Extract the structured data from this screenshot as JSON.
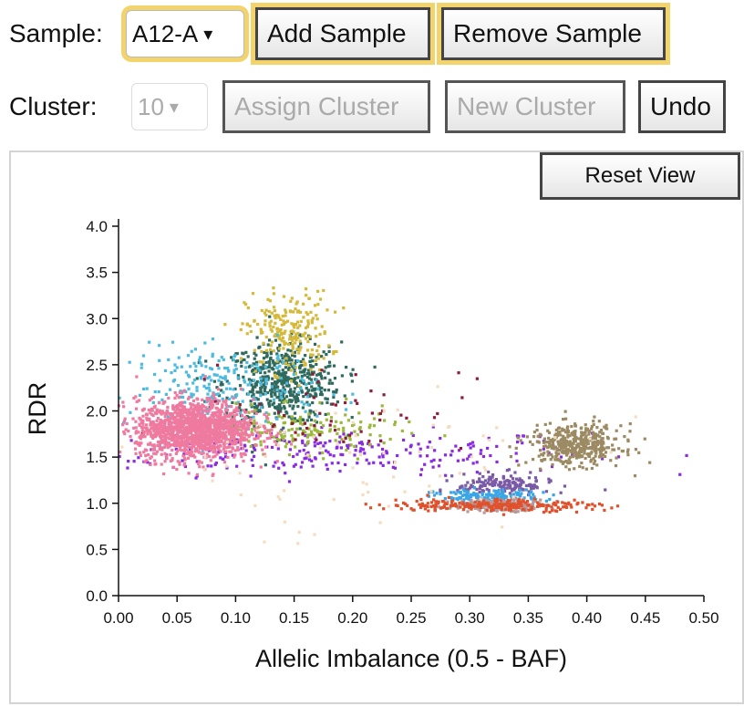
{
  "controls": {
    "sample_label": "Sample:",
    "sample_value": "A12-A",
    "add_sample": "Add Sample",
    "remove_sample": "Remove Sample",
    "cluster_label": "Cluster:",
    "cluster_value": "10",
    "assign_cluster": "Assign Cluster",
    "new_cluster": "New Cluster",
    "undo": "Undo",
    "reset_view": "Reset View",
    "highlight_color": "#f3d36c"
  },
  "chart_data": {
    "type": "scatter",
    "xlabel": "Allelic Imbalance (0.5 - BAF)",
    "ylabel": "RDR",
    "xlim": [
      0.0,
      0.5
    ],
    "ylim": [
      0.0,
      4.0
    ],
    "xticks": [
      "0.00",
      "0.05",
      "0.10",
      "0.15",
      "0.20",
      "0.25",
      "0.30",
      "0.35",
      "0.40",
      "0.45",
      "0.50"
    ],
    "yticks": [
      "0.0",
      "0.5",
      "1.0",
      "1.5",
      "2.0",
      "2.5",
      "3.0",
      "3.5",
      "4.0"
    ],
    "clusters": [
      {
        "color": "#8a2be2",
        "center": [
          0.18,
          1.55
        ],
        "spread": [
          0.11,
          0.12
        ],
        "count": 260
      },
      {
        "color": "#2e6b5e",
        "center": [
          0.14,
          2.3
        ],
        "spread": [
          0.025,
          0.22
        ],
        "count": 520
      },
      {
        "color": "#d4b93a",
        "center": [
          0.145,
          2.85
        ],
        "spread": [
          0.018,
          0.22
        ],
        "count": 220
      },
      {
        "color": "#4dbbe0",
        "center": [
          0.09,
          2.25
        ],
        "spread": [
          0.04,
          0.22
        ],
        "count": 240
      },
      {
        "color": "#9ab83a",
        "center": [
          0.16,
          1.78
        ],
        "spread": [
          0.04,
          0.12
        ],
        "count": 160
      },
      {
        "color": "#8e1c3a",
        "center": [
          0.18,
          2.05
        ],
        "spread": [
          0.06,
          0.25
        ],
        "count": 60
      },
      {
        "color": "#ef7aa0",
        "center": [
          0.065,
          1.8
        ],
        "spread": [
          0.025,
          0.16
        ],
        "count": 1400
      },
      {
        "color": "#9c8a62",
        "center": [
          0.39,
          1.63
        ],
        "spread": [
          0.02,
          0.11
        ],
        "count": 420
      },
      {
        "color": "#7a5aa6",
        "center": [
          0.33,
          1.2
        ],
        "spread": [
          0.02,
          0.06
        ],
        "count": 160
      },
      {
        "color": "#3aa6e6",
        "center": [
          0.315,
          1.07
        ],
        "spread": [
          0.022,
          0.04
        ],
        "count": 140
      },
      {
        "color": "#b89898",
        "center": [
          0.325,
          0.98
        ],
        "spread": [
          0.02,
          0.03
        ],
        "count": 220
      },
      {
        "color": "#e0502a",
        "center": [
          0.32,
          0.98
        ],
        "spread": [
          0.045,
          0.035
        ],
        "count": 220
      },
      {
        "color": "#f5dcc0",
        "center": [
          0.2,
          1.4
        ],
        "spread": [
          0.1,
          0.4
        ],
        "count": 70
      }
    ]
  }
}
